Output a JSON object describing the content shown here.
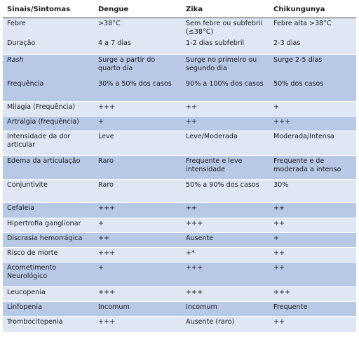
{
  "headers": [
    "Sinais/Sintomas",
    "Dengue",
    "Zika",
    "Chikungunya"
  ],
  "rows": [
    {
      "cells": [
        "Febre",
        ">38°C",
        "Sem febre ou subfebril (≤38°C)",
        "Febre alta >38°C"
      ]
    },
    {
      "cells": [
        "Duração",
        "4 a 7 dias",
        "1-2 dias subfebril",
        "2-3 dias"
      ]
    },
    {
      "cells": [
        "Rash",
        "Surge a partir do quarto dia",
        "Surge no primeiro ou segundo dia",
        "Surge 2-5 dias"
      ]
    },
    {
      "cells": [
        "Frequência",
        "30% a 50% dos casos",
        "90% a 100% dos casos",
        "50% dos casos"
      ]
    },
    {
      "cells": [
        "Milagia (Frequência)",
        "+++",
        "++",
        "+"
      ]
    },
    {
      "cells": [
        "Artralgia (frequência)",
        "+",
        "++",
        "+++"
      ]
    },
    {
      "cells": [
        "Intensidade da dor articular",
        "Leve",
        "Leve/Moderada",
        "Moderada/Intensa"
      ]
    },
    {
      "cells": [
        "Edema da articulação",
        "Raro",
        "Frequente e leve intensidade",
        "Frequente e de moderada a intenso"
      ]
    },
    {
      "cells": [
        "Conjuntivite",
        "Raro",
        "50% a 90% dos casos",
        "30%"
      ]
    },
    {
      "cells": [
        "Cefaleia",
        "+++",
        "++",
        "++"
      ]
    },
    {
      "cells": [
        "Hipertrofia ganglionar",
        "+",
        "+++",
        "++"
      ]
    },
    {
      "cells": [
        "Discrasia hemorrágica",
        "++",
        "Ausente",
        "+"
      ]
    },
    {
      "cells": [
        "Risco de morte",
        "+++",
        "+*",
        "++"
      ]
    },
    {
      "cells": [
        "Acometimento Neurológico",
        "+",
        "+++",
        "++"
      ]
    },
    {
      "cells": [
        "Leucopenia",
        "+++",
        "+++",
        "+++"
      ]
    },
    {
      "cells": [
        "Linfopenia",
        "Incomum",
        "Incomum",
        "Frequente"
      ]
    },
    {
      "cells": [
        "Trombocitopenia",
        "+++",
        "Ausente (raro)",
        "++"
      ]
    }
  ]
}
